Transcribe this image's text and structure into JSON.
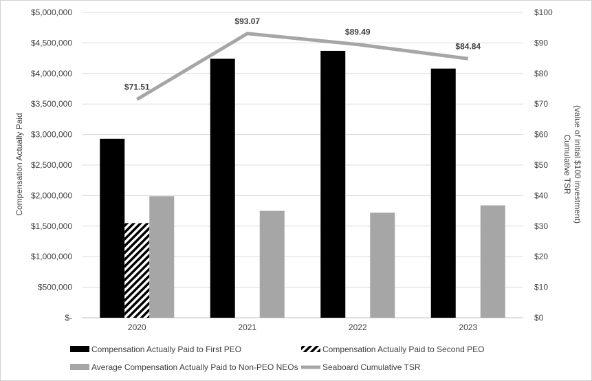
{
  "chart_data": {
    "type": "bar",
    "categories": [
      "2020",
      "2021",
      "2022",
      "2023"
    ],
    "series": [
      {
        "name": "Compensation Actually Paid to First PEO",
        "kind": "bar",
        "axis": "left",
        "color": "#000000",
        "values": [
          2930000,
          4240000,
          4370000,
          4080000
        ]
      },
      {
        "name": "Compensation Actually Paid to Second PEO",
        "kind": "bar",
        "axis": "left",
        "pattern": "diagonal-hatch",
        "color": "#000000",
        "values": [
          1550000,
          null,
          null,
          null
        ]
      },
      {
        "name": "Average Compensation Actually Paid to Non-PEO NEOs",
        "kind": "bar",
        "axis": "left",
        "color": "#a6a6a6",
        "values": [
          1990000,
          1750000,
          1720000,
          1840000
        ]
      },
      {
        "name": "Seaboard Cumulative TSR",
        "kind": "line",
        "axis": "right",
        "color": "#a6a6a6",
        "values": [
          71.51,
          93.07,
          89.49,
          84.84
        ],
        "labels": [
          "$71.51",
          "$93.07",
          "$89.49",
          "$84.84"
        ]
      }
    ],
    "ylabel": "Compensation Actually Paid",
    "y2label_line1": "Cumulative TSR",
    "y2label_line2": "(value of initial $100 investment)",
    "ylim": [
      0,
      5000000
    ],
    "y2lim": [
      0,
      100
    ],
    "yticks": [
      "$-",
      "$500,000",
      "$1,000,000",
      "$1,500,000",
      "$2,000,000",
      "$2,500,000",
      "$3,000,000",
      "$3,500,000",
      "$4,000,000",
      "$4,500,000",
      "$5,000,000"
    ],
    "y2ticks": [
      "$0",
      "$10",
      "$20",
      "$30",
      "$40",
      "$50",
      "$60",
      "$70",
      "$80",
      "$90",
      "$100"
    ],
    "grid": true,
    "legend_position": "bottom"
  }
}
